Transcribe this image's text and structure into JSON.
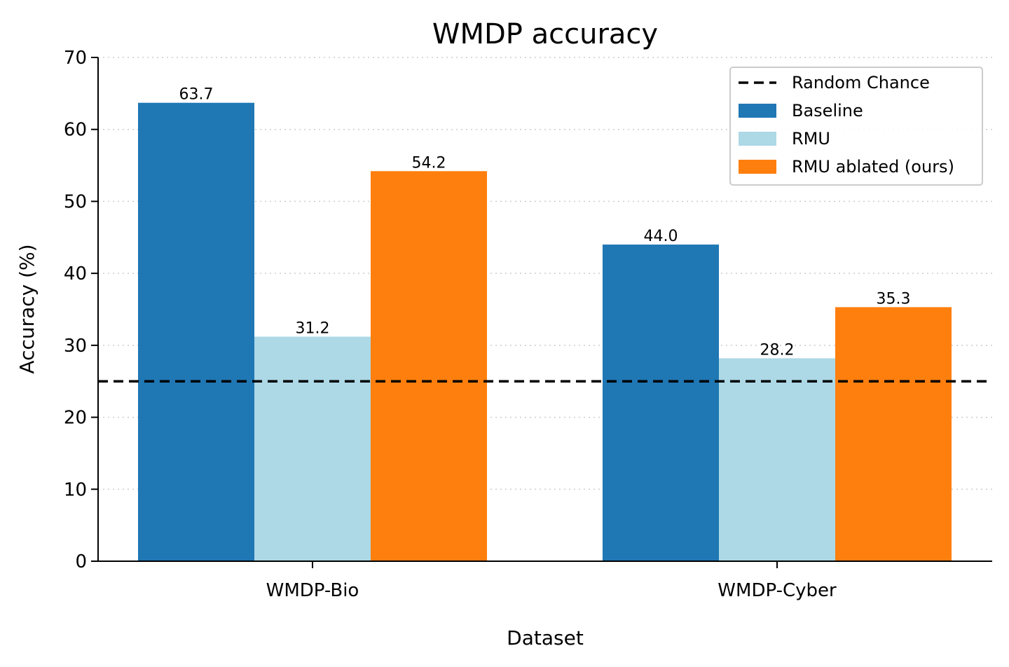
{
  "chart_data": {
    "type": "bar",
    "title": "WMDP accuracy",
    "xlabel": "Dataset",
    "ylabel": "Accuracy (%)",
    "ylim": [
      0,
      70
    ],
    "yticks": [
      0,
      10,
      20,
      30,
      40,
      50,
      60,
      70
    ],
    "grid": "y-dotted",
    "legend_position": "top-right",
    "categories": [
      "WMDP-Bio",
      "WMDP-Cyber"
    ],
    "series": [
      {
        "name": "Baseline",
        "color": "#1f77b4",
        "values": [
          63.7,
          44.0
        ],
        "labels": [
          "63.7",
          "44.0"
        ]
      },
      {
        "name": "RMU",
        "color": "#add8e6",
        "values": [
          31.2,
          28.2
        ],
        "labels": [
          "31.2",
          "28.2"
        ]
      },
      {
        "name": "RMU ablated (ours)",
        "color": "#ff7f0e",
        "values": [
          54.2,
          35.3
        ],
        "labels": [
          "54.2",
          "35.3"
        ]
      }
    ],
    "reference_line": {
      "name": "Random Chance",
      "value": 25,
      "color": "#000000",
      "style": "dashed"
    }
  }
}
